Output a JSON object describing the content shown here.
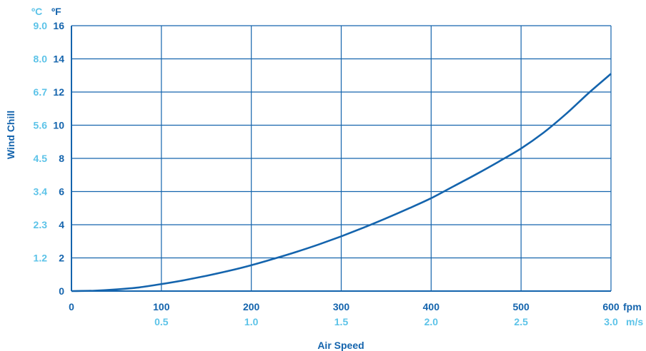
{
  "chart_data": {
    "type": "line",
    "title": "",
    "xlabel": "Air Speed",
    "ylabel": "Wind Chill",
    "x_unit_primary": "fpm",
    "x_unit_secondary": "m/s",
    "y_unit_primary": "ºF",
    "y_unit_secondary": "ºC",
    "xlim": [
      0,
      600
    ],
    "ylim": [
      0,
      16
    ],
    "x_ticks": [
      "0",
      "100",
      "200",
      "300",
      "400",
      "500",
      "600"
    ],
    "x_ticks_secondary": [
      "0.5",
      "1.0",
      "1.5",
      "2.0",
      "2.5",
      "3.0"
    ],
    "y_ticks": [
      "0",
      "2",
      "4",
      "6",
      "8",
      "10",
      "12",
      "14",
      "16"
    ],
    "y_ticks_secondary": [
      "1.2",
      "2.3",
      "3.4",
      "4.5",
      "5.6",
      "6.7",
      "8.0",
      "9.0"
    ],
    "grid": true,
    "legend": "none",
    "series": [
      {
        "x": [
          0,
          25,
          50,
          75,
          100,
          125,
          150,
          175,
          200,
          225,
          250,
          275,
          300,
          325,
          350,
          375,
          400,
          425,
          450,
          475,
          500,
          525,
          550,
          575,
          600
        ],
        "values": [
          0,
          0.02,
          0.1,
          0.22,
          0.42,
          0.65,
          0.92,
          1.22,
          1.56,
          1.95,
          2.36,
          2.81,
          3.3,
          3.83,
          4.39,
          4.98,
          5.6,
          6.32,
          7.04,
          7.8,
          8.6,
          9.55,
          10.68,
          11.93,
          13.1
        ]
      }
    ],
    "colors": {
      "primary": "#1464ad",
      "secondary": "#5cc3e8"
    }
  }
}
